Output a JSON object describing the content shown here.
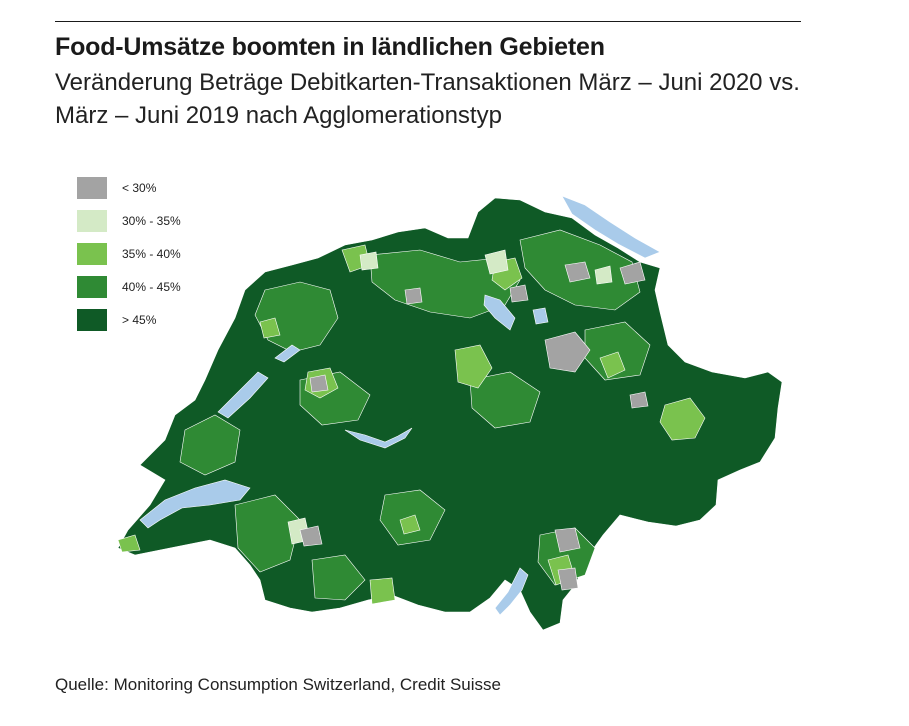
{
  "title": "Food-Umsätze boomten in ländlichen Gebieten",
  "subtitle": "Veränderung Beträge Debitkarten-Transaktionen März – Juni 2020 vs. März – Juni 2019 nach Agglomerationstyp",
  "legend": {
    "items": [
      {
        "label": "< 30%",
        "color": "#a3a3a3"
      },
      {
        "label": "30% - 35%",
        "color": "#d4eac6"
      },
      {
        "label": "35% - 40%",
        "color": "#7ac24e"
      },
      {
        "label": "40% - 45%",
        "color": "#2f8a34"
      },
      {
        "label": "> 45%",
        "color": "#0f5a26"
      }
    ]
  },
  "map": {
    "region": "Switzerland",
    "lake_color": "#a9cbea"
  },
  "source": "Quelle: Monitoring Consumption Switzerland, Credit Suisse"
}
